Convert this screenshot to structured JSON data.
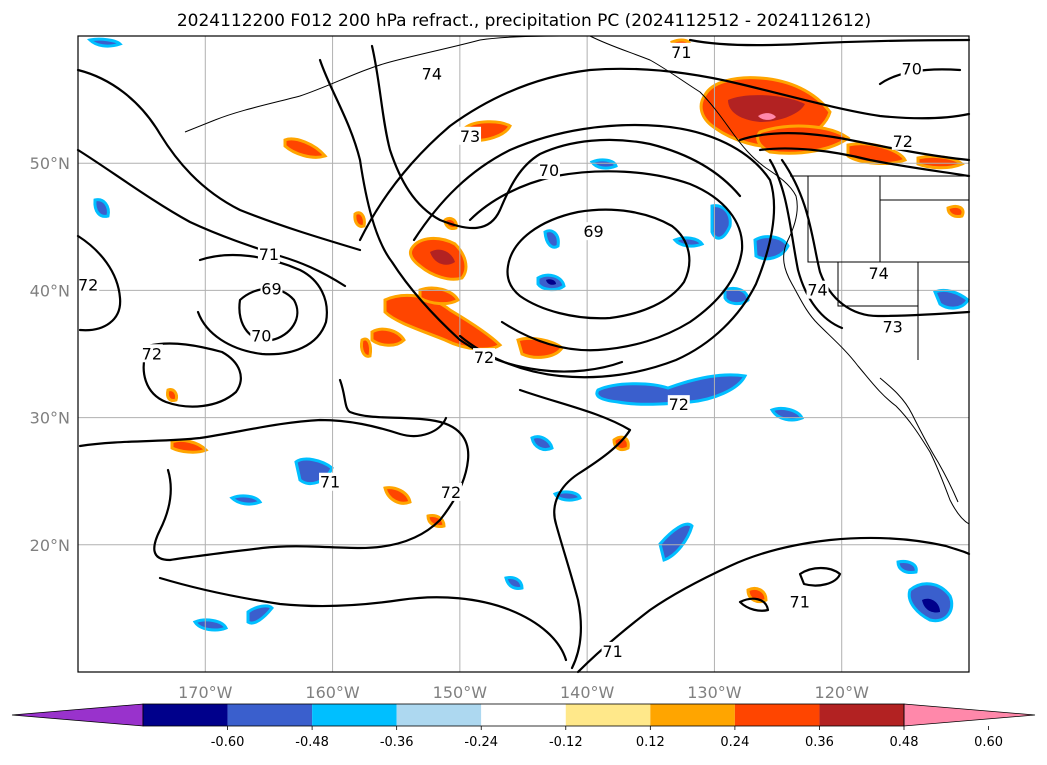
{
  "title": "2024112200 F012 200 hPa refract., precipitation PC (2024112512 - 2024112612)",
  "lon_ticks": [
    {
      "lon": -170,
      "label": "170°W"
    },
    {
      "lon": -160,
      "label": "160°W"
    },
    {
      "lon": -150,
      "label": "150°W"
    },
    {
      "lon": -140,
      "label": "140°W"
    },
    {
      "lon": -130,
      "label": "130°W"
    },
    {
      "lon": -120,
      "label": "120°W"
    }
  ],
  "lat_ticks": [
    {
      "lat": 50,
      "label": "50°N"
    },
    {
      "lat": 40,
      "label": "40°N"
    },
    {
      "lat": 30,
      "label": "30°N"
    },
    {
      "lat": 20,
      "label": "20°N"
    }
  ],
  "map_extent": {
    "lon_min": -180,
    "lon_max": -110,
    "lat_min": 10,
    "lat_max": 60
  },
  "colorbar": {
    "levels": [
      "-0.60",
      "-0.48",
      "-0.36",
      "-0.24",
      "-0.12",
      "0.12",
      "0.24",
      "0.36",
      "0.48",
      "0.60"
    ],
    "colors": [
      "#9932cc",
      "#00008b",
      "#3a5fcd",
      "#00bfff",
      "#add8f0",
      "#ffffff",
      "#ffe88a",
      "#ffa500",
      "#ff4500",
      "#b22222",
      "#ff88aa"
    ]
  },
  "contour_labels": [
    {
      "text": "71",
      "lon": -132.6,
      "lat": 58.6
    },
    {
      "text": "70",
      "lon": -114.5,
      "lat": 57.3
    },
    {
      "text": "74",
      "lon": -152.2,
      "lat": 56.9
    },
    {
      "text": "73",
      "lon": -149.2,
      "lat": 52.0
    },
    {
      "text": "72",
      "lon": -115.2,
      "lat": 51.6
    },
    {
      "text": "70",
      "lon": -143.0,
      "lat": 49.3
    },
    {
      "text": "69",
      "lon": -139.5,
      "lat": 44.5
    },
    {
      "text": "71",
      "lon": -165.0,
      "lat": 42.7
    },
    {
      "text": "69",
      "lon": -164.8,
      "lat": 40.0
    },
    {
      "text": "72",
      "lon": -179.2,
      "lat": 40.3
    },
    {
      "text": "70",
      "lon": -165.6,
      "lat": 36.3
    },
    {
      "text": "72",
      "lon": -174.2,
      "lat": 34.9
    },
    {
      "text": "74",
      "lon": -117.1,
      "lat": 41.2
    },
    {
      "text": "74",
      "lon": -121.9,
      "lat": 39.9
    },
    {
      "text": "73",
      "lon": -116.0,
      "lat": 37.0
    },
    {
      "text": "72",
      "lon": -148.1,
      "lat": 34.6
    },
    {
      "text": "72",
      "lon": -132.8,
      "lat": 30.9
    },
    {
      "text": "71",
      "lon": -160.2,
      "lat": 24.8
    },
    {
      "text": "72",
      "lon": -150.7,
      "lat": 24.0
    },
    {
      "text": "71",
      "lon": -123.3,
      "lat": 15.4
    },
    {
      "text": "71",
      "lon": -138.0,
      "lat": 11.5
    }
  ],
  "icons": {
    "colorbar_left_arrow": "triangle-left",
    "colorbar_right_arrow": "triangle-right"
  }
}
